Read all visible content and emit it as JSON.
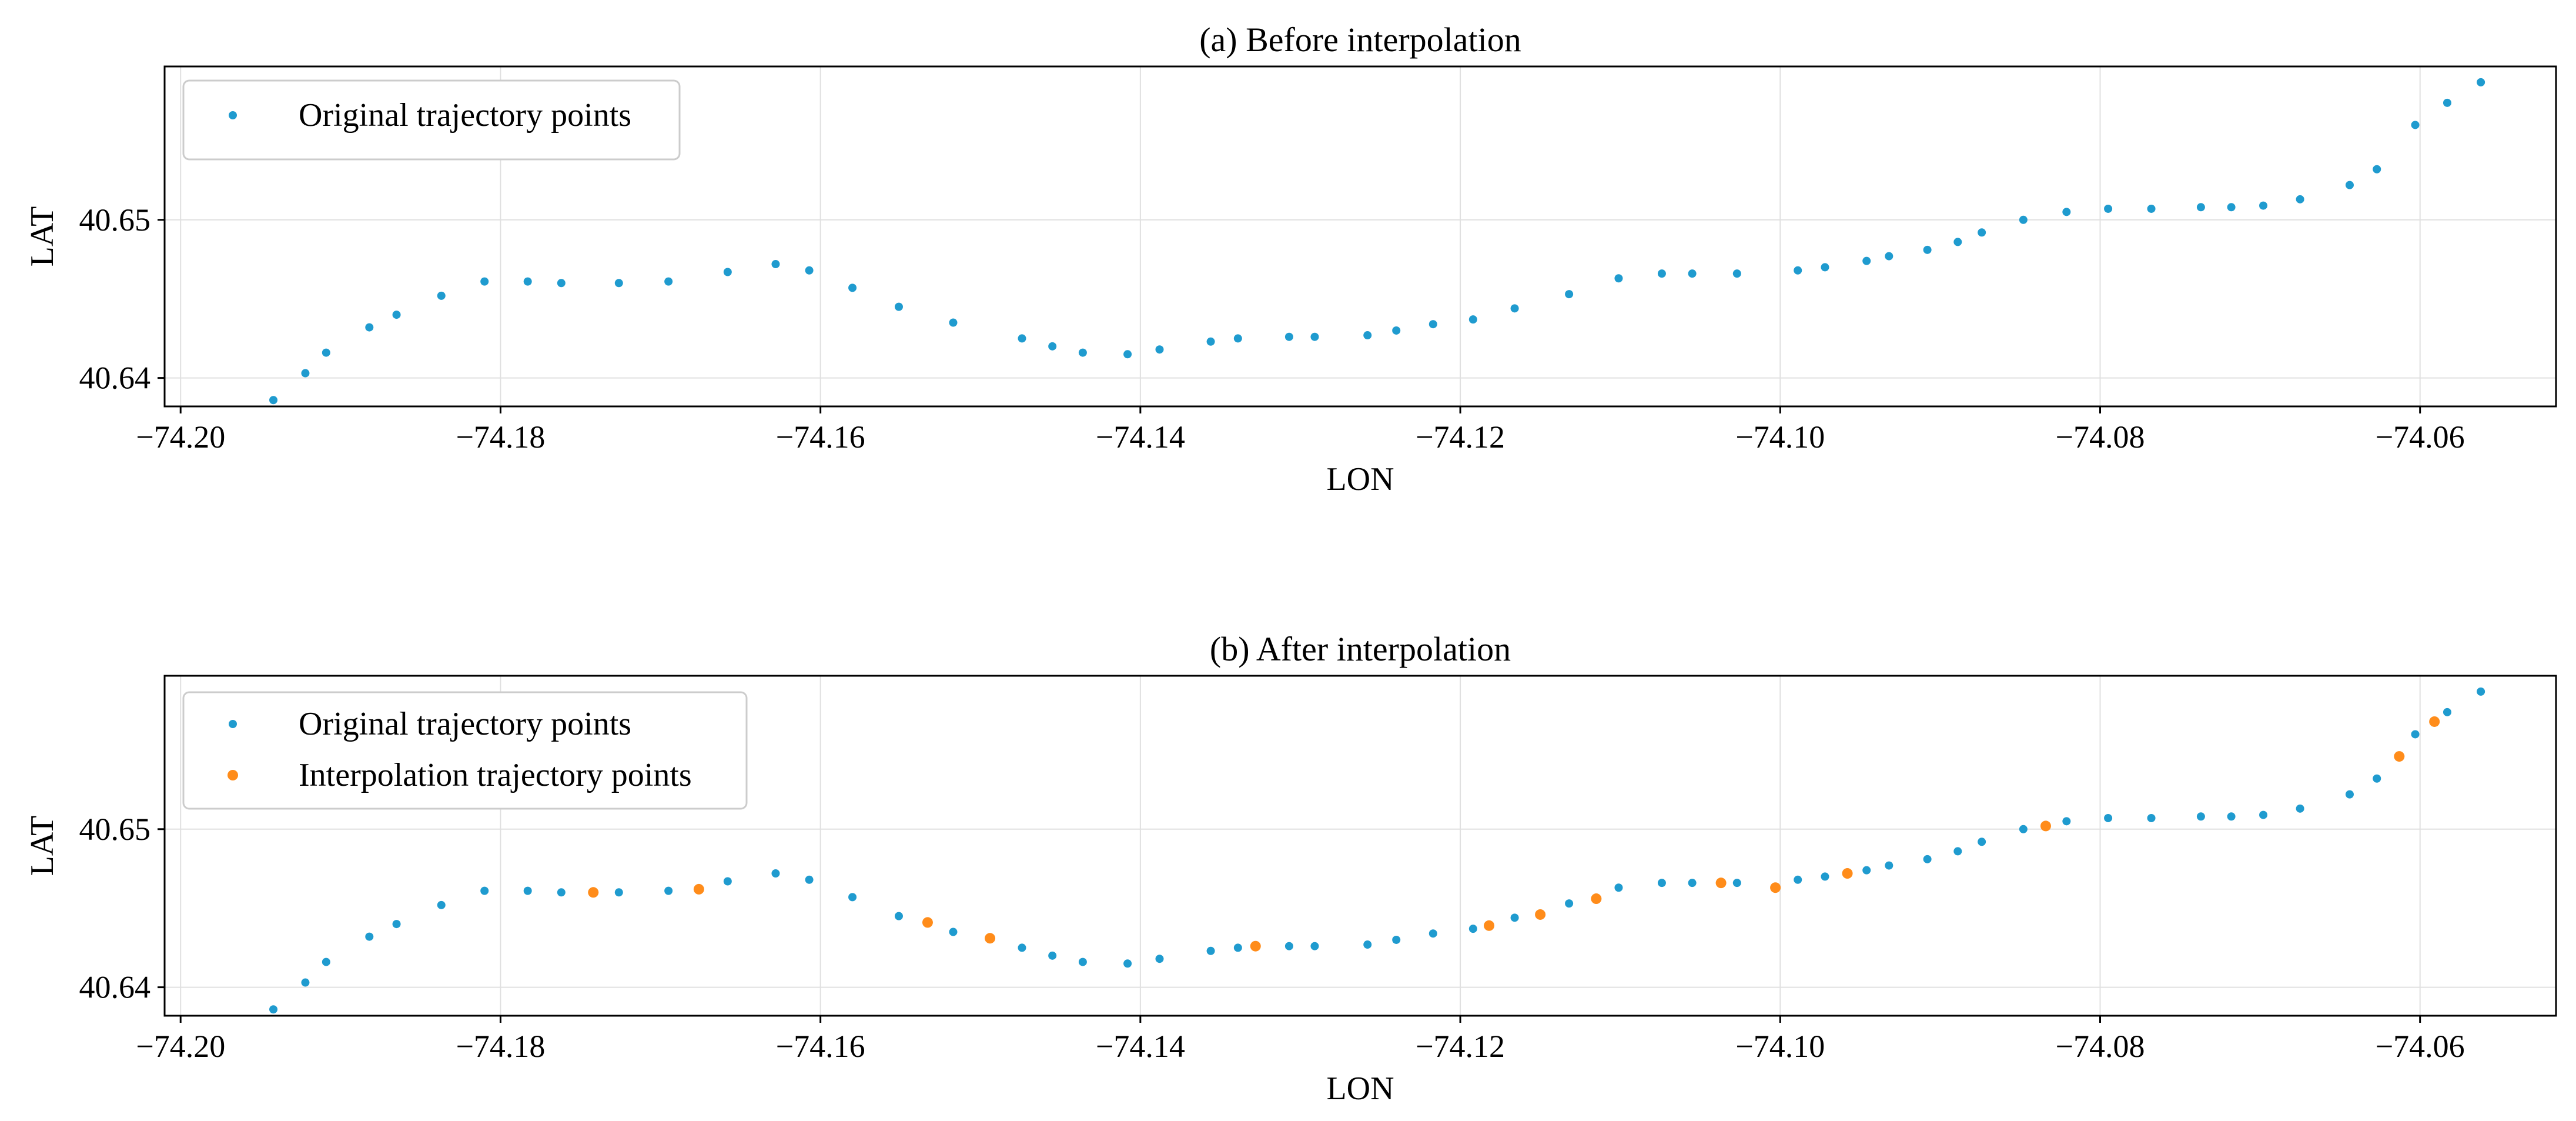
{
  "chart_data": [
    {
      "type": "scatter",
      "title": "(a) Before interpolation",
      "xlabel": "LON",
      "ylabel": "LAT",
      "xlim": [
        -74.201,
        -74.0515
      ],
      "ylim": [
        40.6382,
        40.6597
      ],
      "xticks": [
        -74.2,
        -74.18,
        -74.16,
        -74.14,
        -74.12,
        -74.1,
        -74.08,
        -74.06
      ],
      "xtick_labels": [
        "−74.20",
        "−74.18",
        "−74.16",
        "−74.14",
        "−74.12",
        "−74.10",
        "−74.08",
        "−74.06"
      ],
      "yticks": [
        40.64,
        40.65
      ],
      "ytick_labels": [
        "40.64",
        "40.65"
      ],
      "grid": true,
      "legend_position": "top-left",
      "series": [
        {
          "name": "Original trajectory points",
          "color": "#1f9bcf",
          "points": [
            [
              -74.1942,
              40.6386
            ],
            [
              -74.1922,
              40.6403
            ],
            [
              -74.1909,
              40.6416
            ],
            [
              -74.1882,
              40.6432
            ],
            [
              -74.1865,
              40.644
            ],
            [
              -74.1837,
              40.6452
            ],
            [
              -74.181,
              40.6461
            ],
            [
              -74.1783,
              40.6461
            ],
            [
              -74.1762,
              40.646
            ],
            [
              -74.1726,
              40.646
            ],
            [
              -74.1695,
              40.6461
            ],
            [
              -74.1658,
              40.6467
            ],
            [
              -74.1628,
              40.6472
            ],
            [
              -74.1607,
              40.6468
            ],
            [
              -74.158,
              40.6457
            ],
            [
              -74.1551,
              40.6445
            ],
            [
              -74.1517,
              40.6435
            ],
            [
              -74.1474,
              40.6425
            ],
            [
              -74.1455,
              40.642
            ],
            [
              -74.1436,
              40.6416
            ],
            [
              -74.1408,
              40.6415
            ],
            [
              -74.1388,
              40.6418
            ],
            [
              -74.1356,
              40.6423
            ],
            [
              -74.1339,
              40.6425
            ],
            [
              -74.1307,
              40.6426
            ],
            [
              -74.1291,
              40.6426
            ],
            [
              -74.1258,
              40.6427
            ],
            [
              -74.124,
              40.643
            ],
            [
              -74.1217,
              40.6434
            ],
            [
              -74.1192,
              40.6437
            ],
            [
              -74.1166,
              40.6444
            ],
            [
              -74.1132,
              40.6453
            ],
            [
              -74.1101,
              40.6463
            ],
            [
              -74.1074,
              40.6466
            ],
            [
              -74.1055,
              40.6466
            ],
            [
              -74.1027,
              40.6466
            ],
            [
              -74.0989,
              40.6468
            ],
            [
              -74.0972,
              40.647
            ],
            [
              -74.0946,
              40.6474
            ],
            [
              -74.0932,
              40.6477
            ],
            [
              -74.0908,
              40.6481
            ],
            [
              -74.0889,
              40.6486
            ],
            [
              -74.0874,
              40.6492
            ],
            [
              -74.0848,
              40.65
            ],
            [
              -74.0821,
              40.6505
            ],
            [
              -74.0795,
              40.6507
            ],
            [
              -74.0768,
              40.6507
            ],
            [
              -74.0737,
              40.6508
            ],
            [
              -74.0718,
              40.6508
            ],
            [
              -74.0698,
              40.6509
            ],
            [
              -74.0675,
              40.6513
            ],
            [
              -74.0644,
              40.6522
            ],
            [
              -74.0627,
              40.6532
            ],
            [
              -74.0603,
              40.656
            ],
            [
              -74.0583,
              40.6574
            ],
            [
              -74.0562,
              40.6587
            ]
          ]
        }
      ]
    },
    {
      "type": "scatter",
      "title": "(b) After interpolation",
      "xlabel": "LON",
      "ylabel": "LAT",
      "xlim": [
        -74.201,
        -74.0515
      ],
      "ylim": [
        40.6382,
        40.6597
      ],
      "xticks": [
        -74.2,
        -74.18,
        -74.16,
        -74.14,
        -74.12,
        -74.1,
        -74.08,
        -74.06
      ],
      "xtick_labels": [
        "−74.20",
        "−74.18",
        "−74.16",
        "−74.14",
        "−74.12",
        "−74.10",
        "−74.08",
        "−74.06"
      ],
      "yticks": [
        40.64,
        40.65
      ],
      "ytick_labels": [
        "40.64",
        "40.65"
      ],
      "grid": true,
      "legend_position": "top-left",
      "series": [
        {
          "name": "Original trajectory points",
          "color": "#1f9bcf",
          "points": [
            [
              -74.1942,
              40.6386
            ],
            [
              -74.1922,
              40.6403
            ],
            [
              -74.1909,
              40.6416
            ],
            [
              -74.1882,
              40.6432
            ],
            [
              -74.1865,
              40.644
            ],
            [
              -74.1837,
              40.6452
            ],
            [
              -74.181,
              40.6461
            ],
            [
              -74.1783,
              40.6461
            ],
            [
              -74.1762,
              40.646
            ],
            [
              -74.1726,
              40.646
            ],
            [
              -74.1695,
              40.6461
            ],
            [
              -74.1658,
              40.6467
            ],
            [
              -74.1628,
              40.6472
            ],
            [
              -74.1607,
              40.6468
            ],
            [
              -74.158,
              40.6457
            ],
            [
              -74.1551,
              40.6445
            ],
            [
              -74.1517,
              40.6435
            ],
            [
              -74.1474,
              40.6425
            ],
            [
              -74.1455,
              40.642
            ],
            [
              -74.1436,
              40.6416
            ],
            [
              -74.1408,
              40.6415
            ],
            [
              -74.1388,
              40.6418
            ],
            [
              -74.1356,
              40.6423
            ],
            [
              -74.1339,
              40.6425
            ],
            [
              -74.1307,
              40.6426
            ],
            [
              -74.1291,
              40.6426
            ],
            [
              -74.1258,
              40.6427
            ],
            [
              -74.124,
              40.643
            ],
            [
              -74.1217,
              40.6434
            ],
            [
              -74.1192,
              40.6437
            ],
            [
              -74.1166,
              40.6444
            ],
            [
              -74.1132,
              40.6453
            ],
            [
              -74.1101,
              40.6463
            ],
            [
              -74.1074,
              40.6466
            ],
            [
              -74.1055,
              40.6466
            ],
            [
              -74.1027,
              40.6466
            ],
            [
              -74.0989,
              40.6468
            ],
            [
              -74.0972,
              40.647
            ],
            [
              -74.0946,
              40.6474
            ],
            [
              -74.0932,
              40.6477
            ],
            [
              -74.0908,
              40.6481
            ],
            [
              -74.0889,
              40.6486
            ],
            [
              -74.0874,
              40.6492
            ],
            [
              -74.0848,
              40.65
            ],
            [
              -74.0821,
              40.6505
            ],
            [
              -74.0795,
              40.6507
            ],
            [
              -74.0768,
              40.6507
            ],
            [
              -74.0737,
              40.6508
            ],
            [
              -74.0718,
              40.6508
            ],
            [
              -74.0698,
              40.6509
            ],
            [
              -74.0675,
              40.6513
            ],
            [
              -74.0644,
              40.6522
            ],
            [
              -74.0627,
              40.6532
            ],
            [
              -74.0603,
              40.656
            ],
            [
              -74.0583,
              40.6574
            ],
            [
              -74.0562,
              40.6587
            ]
          ]
        },
        {
          "name": "Interpolation trajectory points",
          "color": "#ff8c1a",
          "points": [
            [
              -74.1742,
              40.646
            ],
            [
              -74.1676,
              40.6462
            ],
            [
              -74.1533,
              40.6441
            ],
            [
              -74.1494,
              40.6431
            ],
            [
              -74.1328,
              40.6426
            ],
            [
              -74.1182,
              40.6439
            ],
            [
              -74.115,
              40.6446
            ],
            [
              -74.1115,
              40.6456
            ],
            [
              -74.1037,
              40.6466
            ],
            [
              -74.1003,
              40.6463
            ],
            [
              -74.0958,
              40.6472
            ],
            [
              -74.0834,
              40.6502
            ],
            [
              -74.0613,
              40.6546
            ],
            [
              -74.0591,
              40.6568
            ]
          ]
        }
      ]
    }
  ]
}
